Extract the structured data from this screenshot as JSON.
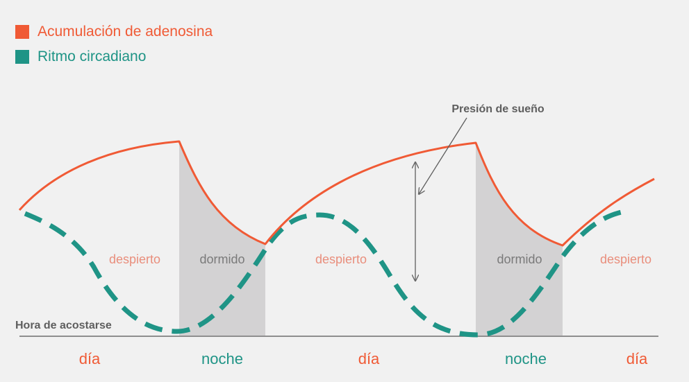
{
  "legend": [
    {
      "label": "Acumulación de adenosina",
      "color": "#f05a35"
    },
    {
      "label": "Ritmo circadiano",
      "color": "#1f9486"
    }
  ],
  "annotation": {
    "pressure_label": "Presión de sueño"
  },
  "bedtime_label": "Hora de acostarse",
  "state_labels": [
    "despierto",
    "dormido",
    "despierto",
    "dormido",
    "despierto"
  ],
  "period_labels": [
    "día",
    "noche",
    "día",
    "noche",
    "día"
  ],
  "colors": {
    "adenosine": "#f05a35",
    "circadian": "#1f9486",
    "awake_text": "#e98e7c",
    "asleep_text": "#7a7a7a",
    "day_text": "#f05a35",
    "night_text": "#1f9486",
    "sleep_shade": "#d3d2d3",
    "axis": "#6d6d6d",
    "annotation": "#5e5e5e"
  }
}
